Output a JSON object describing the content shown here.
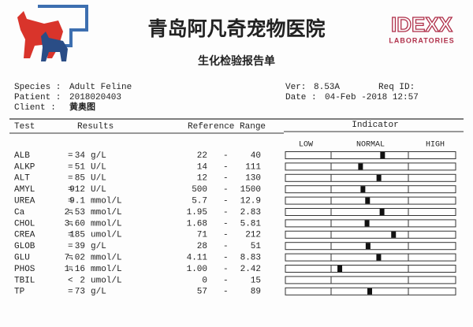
{
  "header": {
    "hospital": "青岛阿凡奇宠物医院",
    "brand": "IDEXX",
    "brand_sub": "LABORATORIES",
    "subtitle": "生化检验报告单"
  },
  "info": {
    "species_label": "Species :",
    "species": "Adult Feline",
    "patient_label": "Patient :",
    "patient": "2018020403",
    "client_label": "Client :",
    "client": "黄奥图",
    "ver_label": "Ver:",
    "ver": "8.53A",
    "req_label": "Req ID:",
    "date_label": "Date :",
    "date": "04-Feb -2018 12:57"
  },
  "table": {
    "headers": [
      "Test",
      "Results",
      "Reference Range",
      "Indicator"
    ],
    "indicator_labels": [
      "LOW",
      "NORMAL",
      "HIGH"
    ],
    "rows": [
      {
        "test": "ALB",
        "op": "=",
        "value": "34",
        "unit": "g/L",
        "low": "22",
        "high": "40"
      },
      {
        "test": "ALKP",
        "op": "=",
        "value": "51",
        "unit": "U/L",
        "low": "14",
        "high": "111"
      },
      {
        "test": "ALT",
        "op": "=",
        "value": "85",
        "unit": "U/L",
        "low": "12",
        "high": "130"
      },
      {
        "test": "AMYL",
        "op": "=",
        "value": "912",
        "unit": "U/L",
        "low": "500",
        "high": "1500"
      },
      {
        "test": "UREA",
        "op": "=",
        "value": "9.1",
        "unit": "mmol/L",
        "low": "5.7",
        "high": "12.9"
      },
      {
        "test": "Ca",
        "op": "=",
        "value": "2.53",
        "unit": "mmol/L",
        "low": "1.95",
        "high": "2.83"
      },
      {
        "test": "CHOL",
        "op": "=",
        "value": "3.60",
        "unit": "mmol/L",
        "low": "1.68",
        "high": "5.81"
      },
      {
        "test": "CREA",
        "op": "=",
        "value": "185",
        "unit": "umol/L",
        "low": "71",
        "high": "212"
      },
      {
        "test": "GLOB",
        "op": "=",
        "value": "39",
        "unit": "g/L",
        "low": "28",
        "high": "51"
      },
      {
        "test": "GLU",
        "op": "=",
        "value": "7.02",
        "unit": "mmol/L",
        "low": "4.11",
        "high": "8.83"
      },
      {
        "test": "PHOS",
        "op": "=",
        "value": "1.16",
        "unit": "mmol/L",
        "low": "1.00",
        "high": "2.42"
      },
      {
        "test": "TBIL",
        "op": "<",
        "value": "2",
        "unit": "umol/L",
        "low": "0",
        "high": "15"
      },
      {
        "test": "TP",
        "op": "=",
        "value": "73",
        "unit": "g/L",
        "low": "57",
        "high": "89"
      }
    ]
  }
}
